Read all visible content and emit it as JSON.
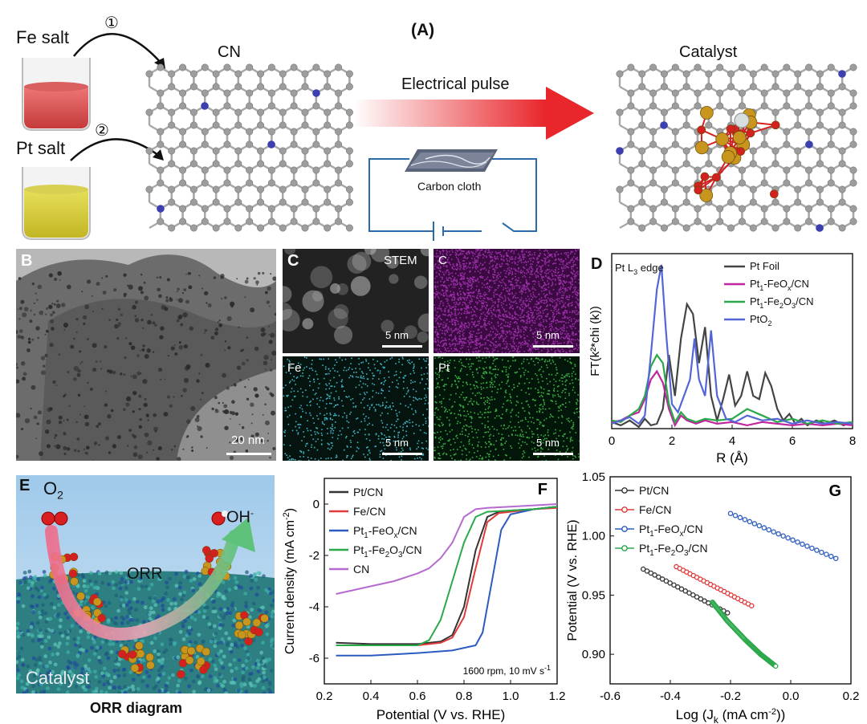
{
  "panel_a": {
    "letter": "(A)",
    "fe_salt": "Fe salt",
    "pt_salt": "Pt salt",
    "step1": "①",
    "step2": "②",
    "cn_label": "CN",
    "pulse_label": "Electrical pulse",
    "cloth_label": "Carbon cloth",
    "catalyst_label": "Catalyst",
    "colors": {
      "fe_beaker": "#d9534f",
      "pt_beaker": "#d6cf3e",
      "nitrogen": "#3b3fb0",
      "carbon": "#9b9b9b",
      "arrow": "#e8262b",
      "fe_atom": "#c8961e",
      "oxygen": "#d42020",
      "circuit": "#2b6aa8"
    }
  },
  "panel_b": {
    "letter": "B",
    "scale": "20 nm"
  },
  "panel_c": {
    "letter": "C",
    "tiles": [
      {
        "label": "STEM",
        "scale": "5 nm"
      },
      {
        "label": "C",
        "scale": "5 nm"
      },
      {
        "label": "Fe",
        "scale": "5 nm"
      },
      {
        "label": "Pt",
        "scale": "5 nm"
      }
    ],
    "colors": {
      "C": "#9b2fa8",
      "Fe": "#3fb4c4",
      "Pt": "#3cb043"
    }
  },
  "panel_d": {
    "letter": "D"
  },
  "panel_e": {
    "letter": "E",
    "o2": "O",
    "o2_sub": "2",
    "oh": "OH",
    "oh_sup": "-",
    "orr": "ORR",
    "catalyst": "Catalyst",
    "caption": "ORR diagram"
  },
  "panel_f": {
    "letter": "F",
    "note": "1600 rpm, 10 mV s",
    "note_sup": "-1"
  },
  "panel_g": {
    "letter": "G"
  },
  "chart_data": [
    {
      "type": "line",
      "panel": "D",
      "annotation_main": "Pt L",
      "annotation_sub": "3",
      "annotation_tail": " edge",
      "xlabel": "R (Å)",
      "ylabel": "FT(k²*chi (k))",
      "xlim": [
        0,
        8
      ],
      "xticks": [
        "0",
        "2",
        "4",
        "6",
        "8"
      ],
      "legend": [
        {
          "main": "Pt Foil",
          "color": "#444444"
        },
        {
          "main": "Pt",
          "sub": "1",
          "tail": "-FeO",
          "sub2": "x",
          "tail2": "/CN",
          "color": "#c0279e"
        },
        {
          "main": "Pt",
          "sub": "1",
          "tail": "-Fe",
          "sub2": "2",
          "tail2": "O",
          "sub3": "3",
          "tail3": "/CN",
          "color": "#2aa84a"
        },
        {
          "main": "PtO",
          "sub": "2",
          "color": "#5466d6"
        }
      ],
      "series": [
        {
          "name": "Pt Foil",
          "color": "#444444",
          "x": [
            0,
            0.3,
            0.6,
            0.9,
            1.1,
            1.3,
            1.5,
            1.7,
            1.9,
            2.1,
            2.3,
            2.5,
            2.7,
            2.9,
            3.1,
            3.3,
            3.5,
            3.7,
            3.9,
            4.1,
            4.3,
            4.5,
            4.7,
            4.9,
            5.1,
            5.3,
            5.5,
            5.7,
            5.9,
            6.1,
            6.3,
            6.5,
            6.8,
            7.1,
            7.4,
            7.7,
            8.0
          ],
          "y": [
            0.04,
            0.02,
            0.05,
            0.01,
            0.06,
            0.02,
            0.03,
            0.12,
            0.45,
            0.2,
            0.55,
            0.76,
            0.7,
            0.4,
            0.62,
            0.2,
            0.05,
            0.18,
            0.33,
            0.14,
            0.2,
            0.35,
            0.2,
            0.18,
            0.34,
            0.26,
            0.12,
            0.05,
            0.09,
            0.03,
            0.06,
            0.02,
            0.05,
            0.03,
            0.05,
            0.02,
            0.04
          ]
        },
        {
          "name": "Pt1-FeOx/CN",
          "color": "#c0279e",
          "x": [
            0,
            0.3,
            0.6,
            0.9,
            1.1,
            1.3,
            1.5,
            1.7,
            1.9,
            2.1,
            2.3,
            2.5,
            2.8,
            3.1,
            3.5,
            4.0,
            4.5,
            5.0,
            5.5,
            6.0,
            6.5,
            7.0,
            7.5,
            8.0
          ],
          "y": [
            0.04,
            0.05,
            0.08,
            0.1,
            0.18,
            0.3,
            0.35,
            0.28,
            0.12,
            0.02,
            0.08,
            0.05,
            0.03,
            0.05,
            0.03,
            0.04,
            0.02,
            0.04,
            0.03,
            0.02,
            0.03,
            0.02,
            0.03,
            0.02
          ]
        },
        {
          "name": "Pt1-Fe2O3/CN",
          "color": "#2aa84a",
          "x": [
            0,
            0.3,
            0.6,
            0.9,
            1.1,
            1.3,
            1.5,
            1.7,
            1.9,
            2.1,
            2.3,
            2.5,
            2.8,
            3.1,
            3.5,
            4.0,
            4.5,
            5.0,
            5.5,
            6.0,
            6.5,
            7.0,
            7.5,
            8.0
          ],
          "y": [
            0.05,
            0.04,
            0.08,
            0.12,
            0.2,
            0.38,
            0.45,
            0.4,
            0.15,
            0.04,
            0.1,
            0.06,
            0.04,
            0.06,
            0.05,
            0.06,
            0.12,
            0.08,
            0.04,
            0.06,
            0.03,
            0.05,
            0.03,
            0.04
          ]
        },
        {
          "name": "PtO2",
          "color": "#5466d6",
          "x": [
            0,
            0.3,
            0.6,
            0.9,
            1.1,
            1.3,
            1.5,
            1.65,
            1.8,
            2.0,
            2.2,
            2.4,
            2.6,
            2.75,
            2.9,
            3.1,
            3.3,
            3.5,
            3.8,
            4.1,
            4.5,
            5.0,
            5.5,
            6.0,
            6.5,
            7.0,
            7.5,
            8.0
          ],
          "y": [
            0.03,
            0.05,
            0.07,
            0.03,
            0.08,
            0.45,
            0.85,
            1.0,
            0.6,
            0.15,
            0.1,
            0.2,
            0.3,
            0.55,
            0.3,
            0.2,
            0.6,
            0.2,
            0.06,
            0.04,
            0.08,
            0.05,
            0.06,
            0.03,
            0.05,
            0.03,
            0.04,
            0.03
          ]
        }
      ]
    },
    {
      "type": "line",
      "panel": "F",
      "xlabel": "Potential (V vs. RHE)",
      "ylabel_main": "Current density (mA cm",
      "ylabel_sup": "-2",
      "ylabel_tail": ")",
      "xlim": [
        0.2,
        1.2
      ],
      "ylim": [
        -7,
        1
      ],
      "xticks": [
        "0.2",
        "0.4",
        "0.6",
        "0.8",
        "1.0",
        "1.2"
      ],
      "yticks": [
        "0",
        "-2",
        "-4",
        "-6"
      ],
      "legend": [
        {
          "main": "Pt/CN",
          "color": "#333333"
        },
        {
          "main": "Fe/CN",
          "color": "#e03a3a"
        },
        {
          "main": "Pt",
          "sub": "1",
          "tail": "-FeO",
          "sub2": "x",
          "tail2": "/CN",
          "color": "#2c5bbf"
        },
        {
          "main": "Pt",
          "sub": "1",
          "tail": "-Fe",
          "sub2": "2",
          "tail2": "O",
          "sub3": "3",
          "tail3": "/CN",
          "color": "#2aa84a"
        },
        {
          "main": "CN",
          "color": "#b56ad0"
        }
      ],
      "series": [
        {
          "name": "Pt/CN",
          "color": "#333333",
          "x": [
            0.25,
            0.4,
            0.6,
            0.7,
            0.75,
            0.8,
            0.85,
            0.9,
            0.95,
            1.0,
            1.1,
            1.2
          ],
          "y": [
            -5.4,
            -5.45,
            -5.45,
            -5.35,
            -5.1,
            -4.0,
            -1.8,
            -0.5,
            -0.3,
            -0.25,
            -0.2,
            -0.1
          ]
        },
        {
          "name": "Fe/CN",
          "color": "#e03a3a",
          "x": [
            0.25,
            0.4,
            0.6,
            0.7,
            0.75,
            0.8,
            0.85,
            0.9,
            0.95,
            1.0,
            1.1,
            1.2
          ],
          "y": [
            -5.5,
            -5.5,
            -5.5,
            -5.4,
            -5.2,
            -4.4,
            -2.5,
            -0.7,
            -0.35,
            -0.3,
            -0.2,
            -0.15
          ]
        },
        {
          "name": "Pt1-FeOx/CN",
          "color": "#2c5bbf",
          "x": [
            0.25,
            0.4,
            0.6,
            0.75,
            0.85,
            0.88,
            0.9,
            0.93,
            0.96,
            1.0,
            1.05,
            1.1,
            1.2
          ],
          "y": [
            -5.9,
            -5.9,
            -5.8,
            -5.7,
            -5.5,
            -5.0,
            -4.0,
            -2.5,
            -1.0,
            -0.4,
            -0.3,
            -0.2,
            -0.1
          ]
        },
        {
          "name": "Pt1-Fe2O3/CN",
          "color": "#2aa84a",
          "x": [
            0.25,
            0.4,
            0.6,
            0.65,
            0.7,
            0.75,
            0.8,
            0.85,
            0.9,
            1.0,
            1.1,
            1.2
          ],
          "y": [
            -5.5,
            -5.5,
            -5.5,
            -5.3,
            -4.5,
            -3.0,
            -1.5,
            -0.5,
            -0.3,
            -0.25,
            -0.2,
            -0.1
          ]
        },
        {
          "name": "CN",
          "color": "#b56ad0",
          "x": [
            0.25,
            0.4,
            0.5,
            0.6,
            0.65,
            0.7,
            0.75,
            0.8,
            0.85,
            0.9,
            1.0,
            1.1,
            1.2
          ],
          "y": [
            -3.5,
            -3.2,
            -3.0,
            -2.7,
            -2.5,
            -2.1,
            -1.5,
            -0.5,
            -0.2,
            -0.15,
            -0.1,
            -0.05,
            0
          ]
        }
      ]
    },
    {
      "type": "scatter",
      "panel": "G",
      "xlabel_main": "Log (J",
      "xlabel_sub": "k",
      "xlabel_mid": " (mA cm",
      "xlabel_sup": "-2",
      "xlabel_tail": "))",
      "ylabel": "Potential (V vs. RHE)",
      "xlim": [
        -0.6,
        0.2
      ],
      "ylim": [
        0.875,
        1.05
      ],
      "xticks": [
        "-0.6",
        "-0.4",
        "-0.2",
        "0.0",
        "0.2"
      ],
      "yticks": [
        "1.05",
        "1.00",
        "0.95",
        "0.90"
      ],
      "legend": [
        {
          "main": "Pt/CN",
          "color": "#333333"
        },
        {
          "main": "Fe/CN",
          "color": "#e03a3a"
        },
        {
          "main": "Pt",
          "sub": "1",
          "tail": "-FeO",
          "sub2": "x",
          "tail2": "/CN",
          "color": "#2c5bbf"
        },
        {
          "main": "Pt",
          "sub": "1",
          "tail": "-Fe",
          "sub2": "2",
          "tail2": "O",
          "sub3": "3",
          "tail3": "/CN",
          "color": "#2aa84a"
        }
      ],
      "series": [
        {
          "name": "Pt/CN",
          "color": "#333333",
          "x": [
            -0.49,
            -0.21
          ],
          "y": [
            0.972,
            0.935
          ]
        },
        {
          "name": "Fe/CN",
          "color": "#e03a3a",
          "x": [
            -0.38,
            -0.13
          ],
          "y": [
            0.974,
            0.941
          ]
        },
        {
          "name": "Pt1-FeOx/CN",
          "color": "#2c5bbf",
          "x": [
            -0.2,
            0.15
          ],
          "y": [
            1.019,
            0.981
          ]
        },
        {
          "name": "Pt1-Fe2O3/CN",
          "color": "#2aa84a",
          "x": [
            -0.26,
            -0.21,
            -0.15,
            -0.1,
            -0.05
          ],
          "y": [
            0.944,
            0.928,
            0.912,
            0.9,
            0.89
          ]
        }
      ]
    }
  ]
}
